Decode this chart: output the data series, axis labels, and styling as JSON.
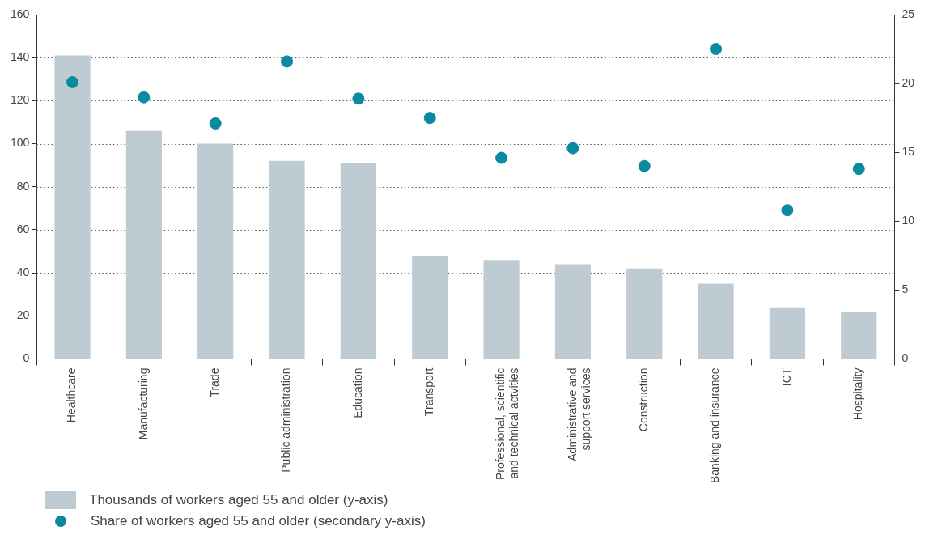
{
  "chart_data": {
    "type": "bar",
    "categories": [
      "Healthcare",
      "Manufacturing",
      "Trade",
      "Public administration",
      "Education",
      "Transport",
      "Professional, scientific and technical actvities",
      "Administrative and support services",
      "Construction",
      "Banking and insurance",
      "ICT",
      "Hospitality"
    ],
    "series": [
      {
        "name": "Thousands of workers aged 55 and older (y-axis)",
        "type": "bar",
        "color": "#bfcbd2",
        "values": [
          141,
          106,
          100,
          92,
          91,
          48,
          46,
          44,
          42,
          35,
          24,
          22
        ]
      },
      {
        "name": "Share of workers aged 55 and older (secondary y-axis)",
        "type": "scatter",
        "axis": "y2",
        "color": "#0a8aa0",
        "values": [
          20.1,
          19.0,
          17.1,
          21.6,
          18.9,
          17.5,
          14.6,
          15.3,
          14.0,
          22.5,
          10.8,
          13.8
        ]
      }
    ],
    "ylim": [
      0,
      160
    ],
    "yticks": [
      0,
      20,
      40,
      60,
      80,
      100,
      120,
      140,
      160
    ],
    "y2lim": [
      0,
      25
    ],
    "y2ticks": [
      0,
      5,
      10,
      15,
      20,
      25
    ],
    "grid": "y",
    "legend": "bottom left",
    "marker": "circle"
  }
}
